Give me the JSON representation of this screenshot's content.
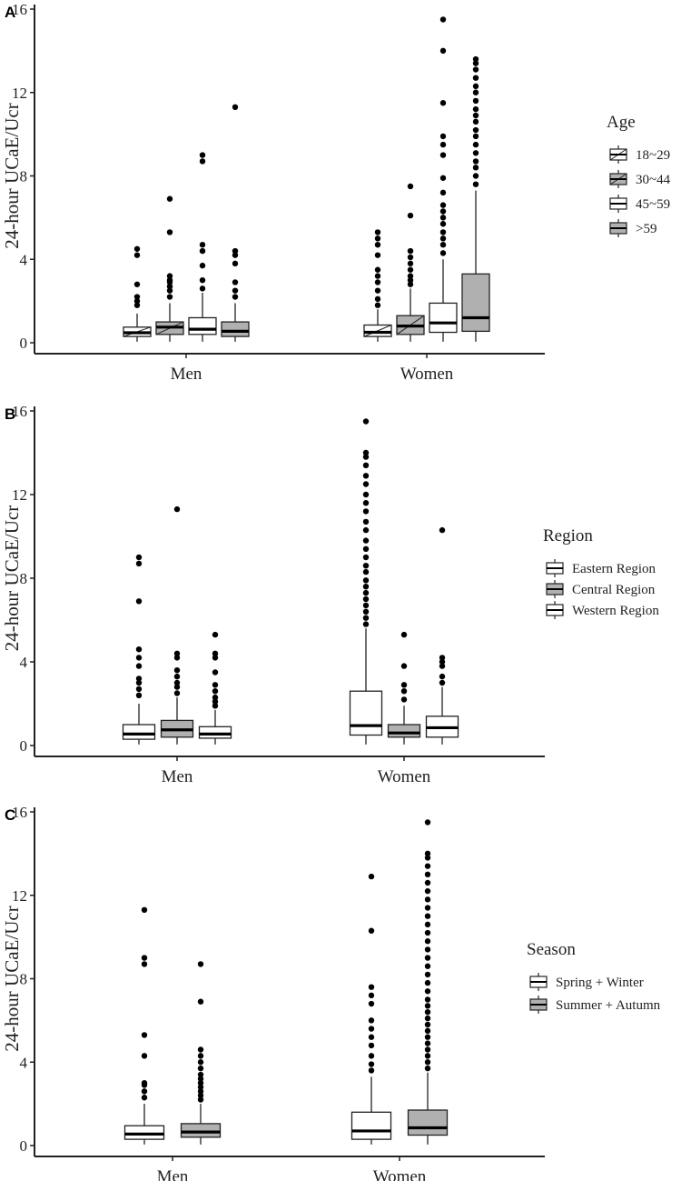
{
  "chart_data": [
    {
      "type": "box",
      "panel_label": "A",
      "ylabel": "24-hour UCaE/Ucr",
      "ylim": [
        0,
        16
      ],
      "yticks": [
        "0",
        "4",
        "8",
        "12",
        "16"
      ],
      "categories": [
        "Men",
        "Women"
      ],
      "legend": {
        "title": "Age",
        "entries": [
          {
            "label": "18~29",
            "fill": "#ffffff",
            "hatch": true
          },
          {
            "label": "30~44",
            "fill": "#b0b0b0",
            "hatch": true
          },
          {
            "label": "45~59",
            "fill": "#ffffff",
            "hatch": false
          },
          {
            "label": ">59",
            "fill": "#b0b0b0",
            "hatch": false
          }
        ]
      },
      "groups": [
        {
          "category": "Men",
          "boxes": [
            {
              "series": "18~29",
              "q1": 0.3,
              "median": 0.48,
              "q3": 0.75,
              "whisker_low": 0.05,
              "whisker_high": 1.4,
              "outliers": [
                1.8,
                2.0,
                2.2,
                2.8,
                4.2,
                4.5
              ]
            },
            {
              "series": "30~44",
              "q1": 0.4,
              "median": 0.75,
              "q3": 1.0,
              "whisker_low": 0.05,
              "whisker_high": 1.9,
              "outliers": [
                2.2,
                2.5,
                2.7,
                2.9,
                3.0,
                3.2,
                5.3,
                6.9
              ]
            },
            {
              "series": "45~59",
              "q1": 0.4,
              "median": 0.65,
              "q3": 1.2,
              "whisker_low": 0.05,
              "whisker_high": 2.4,
              "outliers": [
                2.6,
                3.0,
                3.7,
                4.4,
                4.7,
                8.7,
                9.0
              ]
            },
            {
              "series": ">59",
              "q1": 0.3,
              "median": 0.55,
              "q3": 1.0,
              "whisker_low": 0.05,
              "whisker_high": 1.9,
              "outliers": [
                2.2,
                2.5,
                2.9,
                3.8,
                4.2,
                4.4,
                11.3
              ]
            }
          ]
        },
        {
          "category": "Women",
          "boxes": [
            {
              "series": "18~29",
              "q1": 0.3,
              "median": 0.5,
              "q3": 0.85,
              "whisker_low": 0.05,
              "whisker_high": 1.6,
              "outliers": [
                1.8,
                2.1,
                2.5,
                2.9,
                3.2,
                3.5,
                4.2,
                4.7,
                5.0,
                5.3
              ]
            },
            {
              "series": "30~44",
              "q1": 0.4,
              "median": 0.8,
              "q3": 1.3,
              "whisker_low": 0.05,
              "whisker_high": 2.6,
              "outliers": [
                2.8,
                3.0,
                3.2,
                3.5,
                3.8,
                4.1,
                4.4,
                6.1,
                7.5
              ]
            },
            {
              "series": "45~59",
              "q1": 0.5,
              "median": 0.95,
              "q3": 1.9,
              "whisker_low": 0.05,
              "whisker_high": 4.0,
              "outliers": [
                4.3,
                4.7,
                5.0,
                5.3,
                5.7,
                6.0,
                6.3,
                6.6,
                7.2,
                7.9,
                9.0,
                9.5,
                9.9,
                11.5,
                14.0,
                15.5
              ]
            },
            {
              "series": ">59",
              "q1": 0.55,
              "median": 1.2,
              "q3": 3.3,
              "whisker_low": 0.05,
              "whisker_high": 7.3,
              "outliers": [
                7.6,
                8.0,
                8.4,
                8.7,
                9.1,
                9.5,
                9.9,
                10.2,
                10.6,
                10.9,
                11.2,
                11.6,
                12.0,
                12.3,
                12.7,
                13.1,
                13.4,
                13.6
              ]
            }
          ]
        }
      ]
    },
    {
      "type": "box",
      "panel_label": "B",
      "ylabel": "24-hour UCaE/Ucr",
      "ylim": [
        0,
        16
      ],
      "yticks": [
        "0",
        "4",
        "8",
        "12",
        "16"
      ],
      "categories": [
        "Men",
        "Women"
      ],
      "legend": {
        "title": "Region",
        "entries": [
          {
            "label": "Eastern Region",
            "fill": "#ffffff",
            "hatch": false
          },
          {
            "label": "Central Region",
            "fill": "#b0b0b0",
            "hatch": false
          },
          {
            "label": "Western Region",
            "fill": "#ffffff",
            "hatch": false
          }
        ]
      },
      "groups": [
        {
          "category": "Men",
          "boxes": [
            {
              "series": "Eastern Region",
              "q1": 0.3,
              "median": 0.55,
              "q3": 1.0,
              "whisker_low": 0.05,
              "whisker_high": 2.0,
              "outliers": [
                2.4,
                2.7,
                3.0,
                3.2,
                3.8,
                4.2,
                4.6,
                6.9,
                8.7,
                9.0
              ]
            },
            {
              "series": "Central Region",
              "q1": 0.4,
              "median": 0.75,
              "q3": 1.2,
              "whisker_low": 0.05,
              "whisker_high": 2.3,
              "outliers": [
                2.5,
                2.8,
                3.0,
                3.3,
                3.6,
                4.2,
                4.4,
                11.3
              ]
            },
            {
              "series": "Western Region",
              "q1": 0.35,
              "median": 0.55,
              "q3": 0.9,
              "whisker_low": 0.05,
              "whisker_high": 1.7,
              "outliers": [
                1.9,
                2.1,
                2.3,
                2.6,
                2.9,
                3.5,
                4.2,
                4.4,
                5.3
              ]
            }
          ]
        },
        {
          "category": "Women",
          "boxes": [
            {
              "series": "Eastern Region",
              "q1": 0.5,
              "median": 0.95,
              "q3": 2.6,
              "whisker_low": 0.05,
              "whisker_high": 5.6,
              "outliers": [
                5.8,
                6.1,
                6.4,
                6.7,
                7.0,
                7.3,
                7.6,
                7.9,
                8.3,
                8.6,
                9.0,
                9.4,
                9.8,
                10.3,
                10.7,
                11.2,
                11.6,
                12.0,
                12.5,
                12.9,
                13.4,
                13.8,
                14.0,
                15.5
              ]
            },
            {
              "series": "Central Region",
              "q1": 0.4,
              "median": 0.6,
              "q3": 1.0,
              "whisker_low": 0.05,
              "whisker_high": 1.9,
              "outliers": [
                2.2,
                2.6,
                2.9,
                3.8,
                5.3
              ]
            },
            {
              "series": "Western Region",
              "q1": 0.4,
              "median": 0.85,
              "q3": 1.4,
              "whisker_low": 0.05,
              "whisker_high": 2.8,
              "outliers": [
                3.0,
                3.3,
                3.8,
                4.0,
                4.2,
                10.3
              ]
            }
          ]
        }
      ]
    },
    {
      "type": "box",
      "panel_label": "C",
      "ylabel": "24-hour UCaE/Ucr",
      "ylim": [
        0,
        16
      ],
      "yticks": [
        "0",
        "4",
        "8",
        "12",
        "16"
      ],
      "categories": [
        "Men",
        "Women"
      ],
      "legend": {
        "title": "Season",
        "entries": [
          {
            "label": "Spring + Winter",
            "fill": "#ffffff",
            "hatch": false
          },
          {
            "label": "Summer + Autumn",
            "fill": "#b0b0b0",
            "hatch": false
          }
        ]
      },
      "groups": [
        {
          "category": "Men",
          "boxes": [
            {
              "series": "Spring + Winter",
              "q1": 0.3,
              "median": 0.55,
              "q3": 0.95,
              "whisker_low": 0.05,
              "whisker_high": 2.0,
              "outliers": [
                2.3,
                2.6,
                2.9,
                3.0,
                4.3,
                5.3,
                8.7,
                9.0,
                11.3
              ]
            },
            {
              "series": "Summer + Autumn",
              "q1": 0.4,
              "median": 0.65,
              "q3": 1.05,
              "whisker_low": 0.05,
              "whisker_high": 2.0,
              "outliers": [
                2.2,
                2.4,
                2.6,
                2.8,
                3.0,
                3.2,
                3.4,
                3.7,
                4.0,
                4.3,
                4.6,
                6.9,
                8.7
              ]
            }
          ]
        },
        {
          "category": "Women",
          "boxes": [
            {
              "series": "Spring + Winter",
              "q1": 0.3,
              "median": 0.7,
              "q3": 1.6,
              "whisker_low": 0.05,
              "whisker_high": 3.3,
              "outliers": [
                3.6,
                3.9,
                4.3,
                4.8,
                5.2,
                5.6,
                6.0,
                6.8,
                7.2,
                7.6,
                10.3,
                12.9
              ]
            },
            {
              "series": "Summer + Autumn",
              "q1": 0.5,
              "median": 0.85,
              "q3": 1.7,
              "whisker_low": 0.05,
              "whisker_high": 3.5,
              "outliers": [
                3.7,
                4.0,
                4.3,
                4.6,
                4.9,
                5.2,
                5.5,
                5.8,
                6.1,
                6.4,
                6.7,
                7.0,
                7.4,
                7.8,
                8.2,
                8.6,
                9.0,
                9.4,
                9.8,
                10.2,
                10.6,
                11.0,
                11.4,
                11.8,
                12.2,
                12.6,
                13.0,
                13.4,
                13.8,
                14.0,
                15.5
              ]
            }
          ]
        }
      ]
    }
  ]
}
